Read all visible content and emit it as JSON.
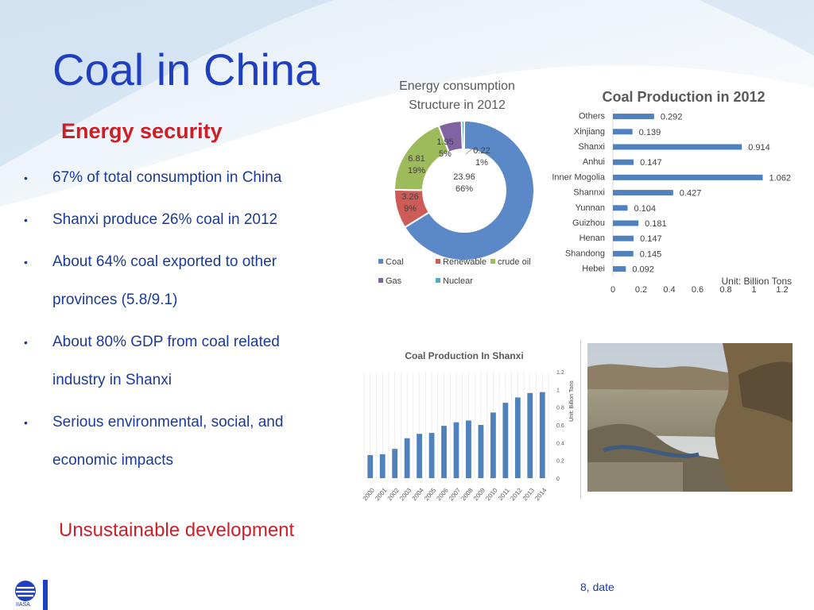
{
  "slide": {
    "title": "Coal in China",
    "subtitle": "Energy security",
    "bullets": [
      "67% of total consumption in China",
      "Shanxi  produce 26% coal in 2012",
      "About 64% coal exported to other provinces (5.8/9.1)",
      "About 80% GDP from coal related industry in Shanxi",
      "Serious environmental, social, and economic impacts"
    ],
    "bullet_symbol": "•",
    "conclusion": "Unsustainable development",
    "footer": "8, date",
    "logo_text": "IIASA"
  },
  "colors": {
    "title": "#1f3fc0",
    "accent_red": "#cc1f27",
    "coal": "#5b88c6",
    "renewable": "#cd5b57",
    "crude_oil": "#9dbb5a",
    "gas": "#8064a2",
    "nuclear": "#4bacc6",
    "bar_blue": "#4f81bd"
  },
  "chart_data": [
    {
      "type": "pie",
      "title": "Energy consumption Structure in 2012",
      "slices": [
        {
          "name": "Coal",
          "value": 23.96,
          "percent": "66%",
          "label_value": "23.96"
        },
        {
          "name": "Renewable",
          "value": 3.26,
          "percent": "9%",
          "label_value": "3.26"
        },
        {
          "name": "crude oil",
          "value": 6.81,
          "percent": "19%",
          "label_value": "6.81"
        },
        {
          "name": "Gas",
          "value": 1.95,
          "percent": "5%",
          "label_value": "1.95"
        },
        {
          "name": "Nuclear",
          "value": 0.22,
          "percent": "1%",
          "label_value": "0.22"
        }
      ],
      "legend": [
        "Coal",
        "Renewable",
        "crude oil",
        "Gas",
        "Nuclear"
      ]
    },
    {
      "type": "bar",
      "orientation": "horizontal",
      "title": "Coal Production in 2012",
      "categories": [
        "Others",
        "Xinjiang",
        "Shanxi",
        "Anhui",
        "Inner Mogolia",
        "Shannxi",
        "Yunnan",
        "Guizhou",
        "Henan",
        "Shandong",
        "Hebei"
      ],
      "values": [
        0.292,
        0.139,
        0.914,
        0.147,
        1.062,
        0.427,
        0.104,
        0.181,
        0.147,
        0.145,
        0.092
      ],
      "value_labels": [
        "0.292",
        "0.139",
        "0.914",
        "0.147",
        "1.062",
        "0.427",
        "0.104",
        "0.181",
        "0.147",
        "0.145",
        "0.092"
      ],
      "xlim": [
        0,
        1.2
      ],
      "xticks": [
        "0",
        "0.2",
        "0.4",
        "0.6",
        "0.8",
        "1",
        "1.2"
      ],
      "unit_label": "Unit: Billion Tons"
    },
    {
      "type": "bar",
      "orientation": "vertical",
      "title": "Coal Production In Shanxi",
      "categories": [
        "2000",
        "2001",
        "2002",
        "2003",
        "2004",
        "2005",
        "2006",
        "2007",
        "2008",
        "2009",
        "2010",
        "2011",
        "2012",
        "2013",
        "2014"
      ],
      "values": [
        0.26,
        0.27,
        0.33,
        0.45,
        0.5,
        0.51,
        0.59,
        0.63,
        0.65,
        0.6,
        0.74,
        0.85,
        0.91,
        0.96,
        0.97
      ],
      "ylim": [
        0,
        1.2
      ],
      "yticks": [
        "0",
        "0.2",
        "0.4",
        "0.6",
        "0.8",
        "1",
        "1.2"
      ],
      "ylabel": "Unit: Billion Tons",
      "grid": true
    }
  ]
}
